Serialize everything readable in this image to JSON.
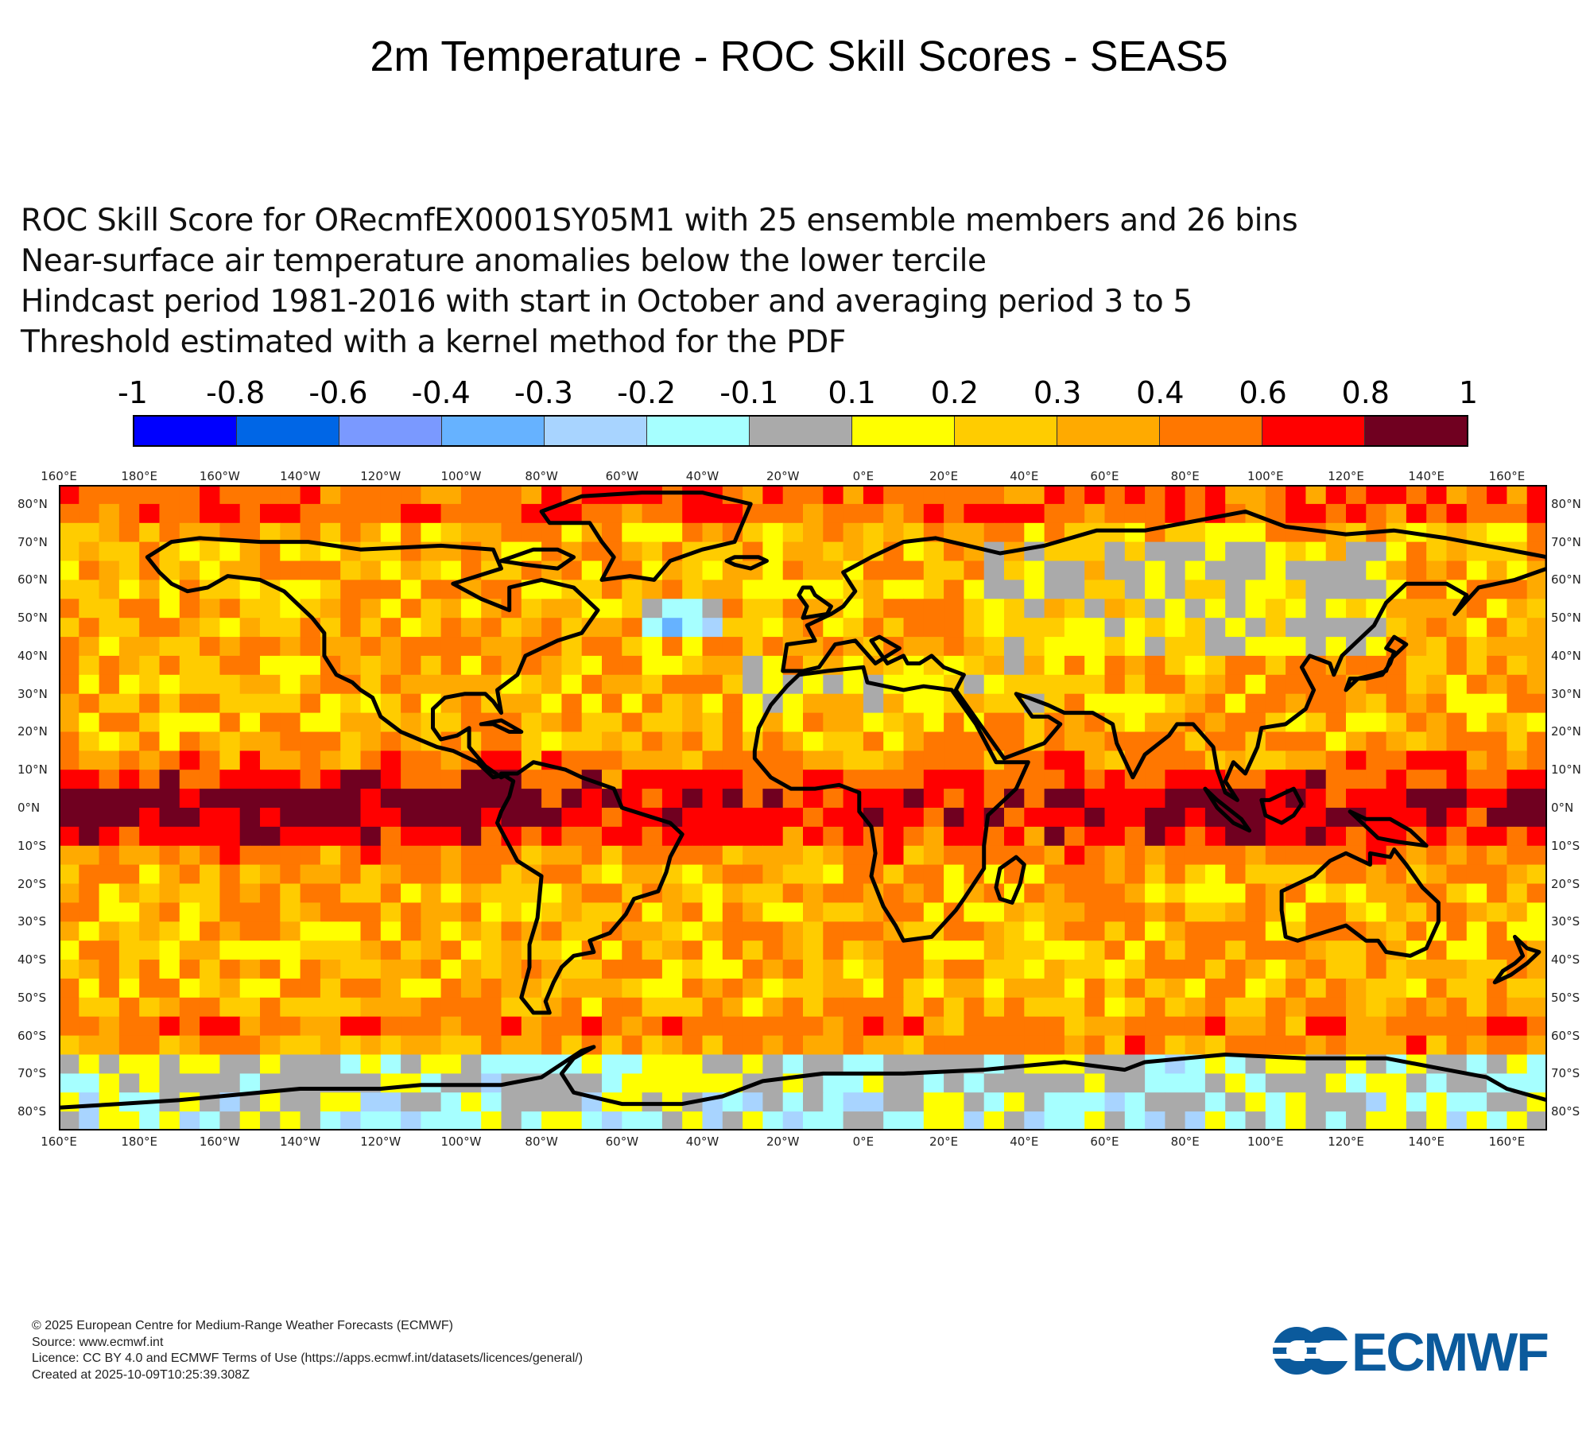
{
  "title": "2m Temperature - ROC Skill Scores - SEAS5",
  "subtitle_lines": [
    "ROC Skill Score for ORecmfEX0001SY05M1 with 25 ensemble members and 26 bins",
    "Near-surface air temperature anomalies below the lower tercile",
    "Hindcast period 1981-2016 with start in October and averaging period  3 to  5",
    "Threshold estimated with a kernel method for the PDF"
  ],
  "legend": {
    "labels": [
      "-1",
      "-0.8",
      "-0.6",
      "-0.4",
      "-0.3",
      "-0.2",
      "-0.1",
      "0.1",
      "0.2",
      "0.3",
      "0.4",
      "0.6",
      "0.8",
      "1"
    ],
    "colors": [
      "#0000ff",
      "#0066e6",
      "#7a99ff",
      "#66b2ff",
      "#a8d4ff",
      "#a6ffff",
      "#aaaaaa",
      "#ffff00",
      "#ffcc00",
      "#ffaa00",
      "#ff7700",
      "#ff0000",
      "#700020"
    ]
  },
  "axes": {
    "lon_labels": [
      "160°E",
      "180°E",
      "160°W",
      "140°W",
      "120°W",
      "100°W",
      "80°W",
      "60°W",
      "40°W",
      "20°W",
      "0°E",
      "20°E",
      "40°E",
      "60°E",
      "80°E",
      "100°E",
      "120°E",
      "140°E",
      "160°E"
    ],
    "lat_labels": [
      "80°N",
      "70°N",
      "60°N",
      "50°N",
      "40°N",
      "30°N",
      "20°N",
      "10°N",
      "0°N",
      "10°S",
      "20°S",
      "30°S",
      "40°S",
      "50°S",
      "60°S",
      "70°S",
      "80°S"
    ]
  },
  "map": {
    "lon_range": [
      -190,
      180
    ],
    "lat_range": [
      -85,
      85
    ]
  },
  "footer": {
    "copyright": "© 2025 European Centre for Medium-Range Weather Forecasts (ECMWF)",
    "source": "Source: www.ecmwf.int",
    "licence": "Licence: CC BY 4.0 and ECMWF Terms of Use (https://apps.ecmwf.int/datasets/licences/general/)",
    "created": "Created at 2025-10-09T10:25:39.308Z"
  },
  "logo": {
    "text": "ECMWF",
    "color": "#0b5a9c"
  }
}
